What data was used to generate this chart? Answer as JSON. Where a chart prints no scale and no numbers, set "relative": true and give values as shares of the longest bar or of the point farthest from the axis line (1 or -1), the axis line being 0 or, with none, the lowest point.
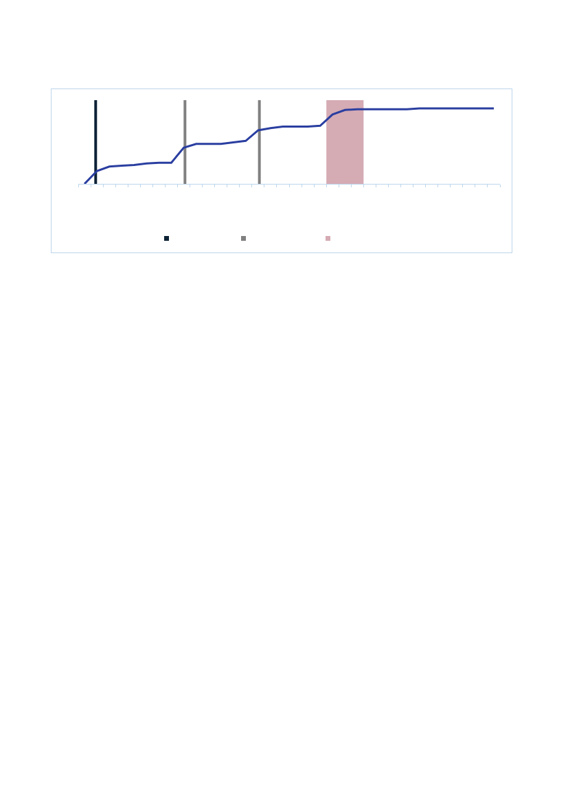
{
  "chart_data": {
    "type": "line",
    "relative": true,
    "categories": [
      null,
      null,
      null,
      null,
      null,
      null,
      null,
      null,
      null,
      null,
      null,
      null,
      null,
      null,
      null,
      null,
      null,
      null,
      null,
      null,
      null,
      null,
      null,
      null,
      null,
      null,
      null,
      null,
      null,
      null,
      null,
      null,
      null,
      null
    ],
    "series": [
      {
        "color": "#2a3ea0",
        "values": [
          0,
          0.17,
          0.23,
          0.24,
          0.25,
          0.27,
          0.28,
          0.28,
          0.48,
          0.53,
          0.53,
          0.53,
          0.55,
          0.57,
          0.71,
          0.74,
          0.76,
          0.76,
          0.76,
          0.77,
          0.92,
          0.98,
          0.99,
          0.99,
          0.99,
          0.99,
          0.99,
          1,
          1,
          1,
          1,
          1,
          1,
          1
        ]
      }
    ]
  }
}
